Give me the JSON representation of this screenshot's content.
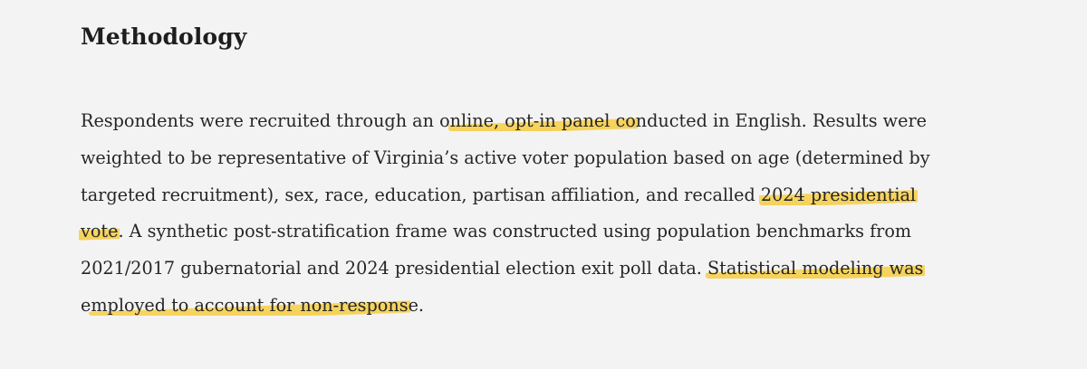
{
  "section": {
    "title": "Methodology"
  },
  "paragraph": {
    "lines": [
      [
        {
          "text": "Respondents were recruited through an o",
          "highlight": false
        },
        {
          "text": "nline, opt-in panel co",
          "highlight": true
        },
        {
          "text": "nducted in English. Results were",
          "highlight": false
        }
      ],
      [
        {
          "text": "weighted to be representative of Virginia’s active voter population based on age (determined by",
          "highlight": false
        }
      ],
      [
        {
          "text": "targeted recruitment), sex, race, education, partisan affiliation, and recalled ",
          "highlight": false
        },
        {
          "text": "2024 presidential",
          "highlight": true
        }
      ],
      [
        {
          "text": "vote",
          "highlight": true
        },
        {
          "text": ". A synthetic post-stratification frame was constructed using population benchmarks from",
          "highlight": false
        }
      ],
      [
        {
          "text": "2021/2017 gubernatorial and 2024 presidential election exit poll data. ",
          "highlight": false
        },
        {
          "text": "Statistical modeling was",
          "highlight": true
        }
      ],
      [
        {
          "text": "e",
          "highlight": false
        },
        {
          "text": "mployed to account for non-respons",
          "highlight": true
        },
        {
          "text": "e.",
          "highlight": false
        }
      ]
    ]
  },
  "colors": {
    "background": "#f4f3f3",
    "text": "#262626",
    "highlight": "#f7ce44"
  }
}
